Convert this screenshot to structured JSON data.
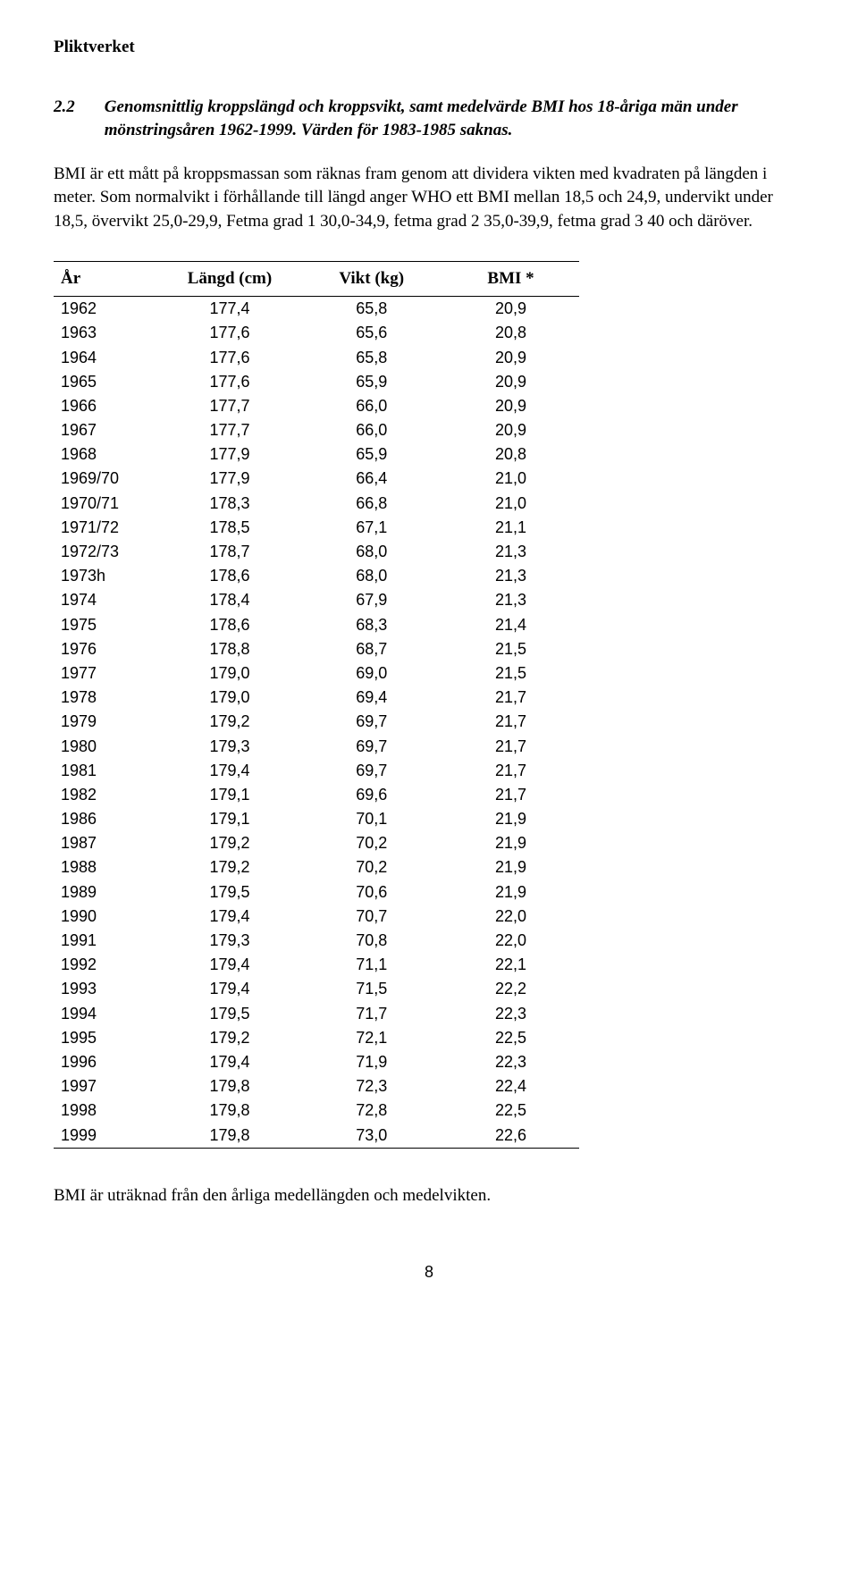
{
  "header": "Pliktverket",
  "section": {
    "number": "2.2",
    "title": "Genomsnittlig kroppslängd och kroppsvikt, samt medelvärde BMI hos 18-åriga män under mönstringsåren 1962-1999. Värden för 1983-1985 saknas."
  },
  "paragraph": "BMI är ett mått på kroppsmassan som räknas fram genom att dividera vikten med kvadraten på längden i meter. Som normalvikt i förhållande till längd anger WHO ett BMI mellan 18,5 och 24,9, undervikt under 18,5, övervikt 25,0-29,9,  Fetma grad 1 30,0-34,9, fetma grad 2 35,0-39,9, fetma grad 3  40 och däröver.",
  "table": {
    "columns": [
      "År",
      "Längd (cm)",
      "Vikt (kg)",
      "BMI  *"
    ],
    "rows": [
      [
        "1962",
        "177,4",
        "65,8",
        "20,9"
      ],
      [
        "1963",
        "177,6",
        "65,6",
        "20,8"
      ],
      [
        "1964",
        "177,6",
        "65,8",
        "20,9"
      ],
      [
        "1965",
        "177,6",
        "65,9",
        "20,9"
      ],
      [
        "1966",
        "177,7",
        "66,0",
        "20,9"
      ],
      [
        "1967",
        "177,7",
        "66,0",
        "20,9"
      ],
      [
        "1968",
        "177,9",
        "65,9",
        "20,8"
      ],
      [
        "1969/70",
        "177,9",
        "66,4",
        "21,0"
      ],
      [
        "1970/71",
        "178,3",
        "66,8",
        "21,0"
      ],
      [
        "1971/72",
        "178,5",
        "67,1",
        "21,1"
      ],
      [
        "1972/73",
        "178,7",
        "68,0",
        "21,3"
      ],
      [
        "1973h",
        "178,6",
        "68,0",
        "21,3"
      ],
      [
        "1974",
        "178,4",
        "67,9",
        "21,3"
      ],
      [
        "1975",
        "178,6",
        "68,3",
        "21,4"
      ],
      [
        "1976",
        "178,8",
        "68,7",
        "21,5"
      ],
      [
        "1977",
        "179,0",
        "69,0",
        "21,5"
      ],
      [
        "1978",
        "179,0",
        "69,4",
        "21,7"
      ],
      [
        "1979",
        "179,2",
        "69,7",
        "21,7"
      ],
      [
        "1980",
        "179,3",
        "69,7",
        "21,7"
      ],
      [
        "1981",
        "179,4",
        "69,7",
        "21,7"
      ],
      [
        "1982",
        "179,1",
        "69,6",
        "21,7"
      ],
      [
        "1986",
        "179,1",
        "70,1",
        "21,9"
      ],
      [
        "1987",
        "179,2",
        "70,2",
        "21,9"
      ],
      [
        "1988",
        "179,2",
        "70,2",
        "21,9"
      ],
      [
        "1989",
        "179,5",
        "70,6",
        "21,9"
      ],
      [
        "1990",
        "179,4",
        "70,7",
        "22,0"
      ],
      [
        "1991",
        "179,3",
        "70,8",
        "22,0"
      ],
      [
        "1992",
        "179,4",
        "71,1",
        "22,1"
      ],
      [
        "1993",
        "179,4",
        "71,5",
        "22,2"
      ],
      [
        "1994",
        "179,5",
        "71,7",
        "22,3"
      ],
      [
        "1995",
        "179,2",
        "72,1",
        "22,5"
      ],
      [
        "1996",
        "179,4",
        "71,9",
        "22,3"
      ],
      [
        "1997",
        "179,8",
        "72,3",
        "22,4"
      ],
      [
        "1998",
        "179,8",
        "72,8",
        "22,5"
      ],
      [
        "1999",
        "179,8",
        "73,0",
        "22,6"
      ]
    ]
  },
  "footnote": "BMI är uträknad från den årliga  medellängden och medelvikten.",
  "page_number": "8"
}
